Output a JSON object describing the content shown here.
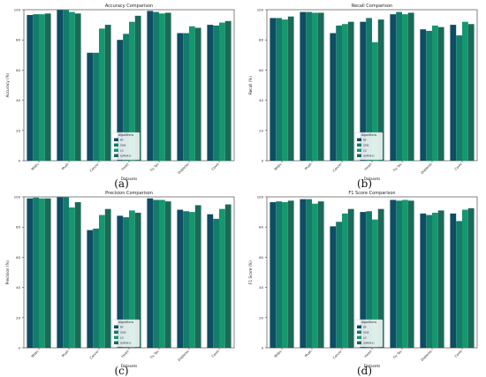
{
  "chart_data": [
    {
      "type": "bar",
      "panel_label": "(a)",
      "title": "Accuracy Comparison",
      "xlabel": "Datasets",
      "ylabel": "Accuracy (%)",
      "ylim": [
        0,
        100
      ],
      "yticks": [
        0,
        20,
        40,
        60,
        80,
        100
      ],
      "grid": false,
      "legend_placement": "bottom-center",
      "legend_title": "Algorithms",
      "categories": [
        "Wdbc",
        "Mush",
        "Cancer",
        "Heart",
        "Tic Tac",
        "Diabetes",
        "Covid"
      ],
      "series": [
        {
          "name": "RF",
          "color": "#0e4d64",
          "values": [
            96.5,
            99.8,
            71.5,
            80.0,
            99.2,
            84.5,
            90.0
          ]
        },
        {
          "name": "XGB",
          "color": "#137c6b",
          "values": [
            97.0,
            99.8,
            71.5,
            84.0,
            98.5,
            84.5,
            89.5
          ]
        },
        {
          "name": "LG",
          "color": "#16976d",
          "values": [
            97.0,
            98.5,
            87.5,
            92.0,
            97.5,
            89.0,
            91.5
          ]
        },
        {
          "name": "ILPRM-D",
          "color": "#1b6a58",
          "values": [
            97.5,
            97.5,
            90.0,
            96.0,
            98.0,
            88.0,
            92.5
          ]
        }
      ]
    },
    {
      "type": "bar",
      "panel_label": "(b)",
      "title": "Recall Comparison",
      "xlabel": "Datasets",
      "ylabel": "Recall (%)",
      "ylim": [
        0,
        100
      ],
      "yticks": [
        0,
        20,
        40,
        60,
        80,
        100
      ],
      "grid": false,
      "legend_placement": "bottom-center",
      "legend_title": "Algorithms",
      "categories": [
        "Wdbc",
        "Mush",
        "Cancer",
        "Heart",
        "Tic Tac",
        "Diabetes",
        "Covid"
      ],
      "series": [
        {
          "name": "RF",
          "color": "#0e4d64",
          "values": [
            94.5,
            98.5,
            84.5,
            92.0,
            97.0,
            87.0,
            90.0
          ]
        },
        {
          "name": "XGB",
          "color": "#137c6b",
          "values": [
            94.5,
            98.5,
            89.5,
            94.5,
            98.5,
            86.0,
            83.0
          ]
        },
        {
          "name": "LG",
          "color": "#16976d",
          "values": [
            93.5,
            98.0,
            90.5,
            78.5,
            97.0,
            89.5,
            92.0
          ]
        },
        {
          "name": "ILPRM-D",
          "color": "#1b6a58",
          "values": [
            95.5,
            98.0,
            92.0,
            93.5,
            98.0,
            88.5,
            90.5
          ]
        }
      ]
    },
    {
      "type": "bar",
      "panel_label": "(c)",
      "title": "Precision Comparison",
      "xlabel": "Datasets",
      "ylabel": "Precision (%)",
      "ylim": [
        0,
        100
      ],
      "yticks": [
        0,
        20,
        40,
        60,
        80,
        100
      ],
      "grid": false,
      "legend_placement": "bottom-center",
      "legend_title": "Algorithms",
      "categories": [
        "Wdbc",
        "Mush",
        "Cancer",
        "Heart",
        "Tic Tac",
        "Diabetes",
        "Covid"
      ],
      "series": [
        {
          "name": "RF",
          "color": "#0e4d64",
          "values": [
            99.0,
            99.8,
            78.0,
            87.5,
            99.0,
            91.5,
            88.5
          ]
        },
        {
          "name": "XGB",
          "color": "#137c6b",
          "values": [
            99.5,
            99.8,
            79.0,
            86.5,
            98.0,
            90.5,
            85.5
          ]
        },
        {
          "name": "LG",
          "color": "#16976d",
          "values": [
            99.0,
            93.0,
            88.0,
            91.0,
            98.0,
            90.0,
            92.0
          ]
        },
        {
          "name": "ILPRM-D",
          "color": "#1b6a58",
          "values": [
            99.0,
            96.5,
            92.0,
            89.5,
            97.0,
            94.5,
            95.0
          ]
        }
      ]
    },
    {
      "type": "bar",
      "panel_label": "(d)",
      "title": "F1 Score Comparison",
      "xlabel": "Datasets",
      "ylabel": "F1 Score (%)",
      "ylim": [
        0,
        100
      ],
      "yticks": [
        0,
        20,
        40,
        60,
        80,
        100
      ],
      "grid": false,
      "legend_placement": "bottom-center",
      "legend_title": "Algorithms",
      "categories": [
        "Wdbc",
        "Mush",
        "Cancer",
        "Heart",
        "Tic Tac",
        "Diabetes",
        "Covid"
      ],
      "series": [
        {
          "name": "RF",
          "color": "#0e4d64",
          "values": [
            96.5,
            98.5,
            80.5,
            90.0,
            98.0,
            89.0,
            89.0
          ]
        },
        {
          "name": "XGB",
          "color": "#137c6b",
          "values": [
            97.0,
            98.5,
            83.5,
            90.5,
            97.5,
            88.0,
            84.0
          ]
        },
        {
          "name": "LG",
          "color": "#16976d",
          "values": [
            96.5,
            95.5,
            89.0,
            85.0,
            98.0,
            89.5,
            91.5
          ]
        },
        {
          "name": "ILPRM-D",
          "color": "#1b6a58",
          "values": [
            97.5,
            97.0,
            92.0,
            92.0,
            97.5,
            91.0,
            92.5
          ]
        }
      ]
    }
  ]
}
